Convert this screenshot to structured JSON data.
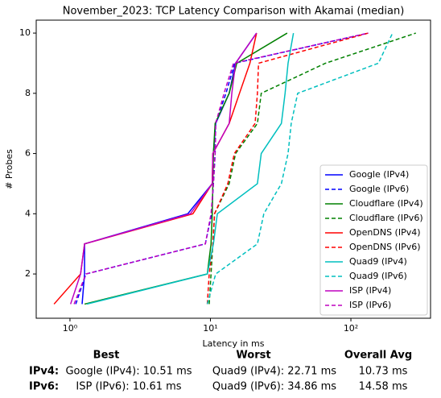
{
  "chart_data": {
    "type": "line",
    "title": "November_2023: TCP Latency Comparison with Akamai (median)",
    "xlabel": "Latency in ms",
    "ylabel": "# Probes",
    "xscale": "log",
    "xlim": [
      0.575,
      369
    ],
    "ylim": [
      0.53,
      10.43
    ],
    "xticks": [
      {
        "value": 1,
        "label": "10⁰"
      },
      {
        "value": 10,
        "label": "10¹"
      },
      {
        "value": 100,
        "label": "10²"
      }
    ],
    "yticks": [
      2,
      4,
      6,
      8,
      10
    ],
    "legend": "lower right",
    "series": [
      {
        "name": "Google (IPv4)",
        "color": "#0000ff",
        "dash": false,
        "x": [
          1.22,
          1.27,
          1.27,
          6.9,
          10.3,
          10.5,
          10.9,
          13.6,
          15.1,
          21.3
        ],
        "values": [
          1,
          2,
          3,
          4,
          5,
          6,
          7,
          8,
          9,
          10
        ]
      },
      {
        "name": "Google (IPv6)",
        "color": "#0000ff",
        "dash": true,
        "x": [
          1.1,
          1.3,
          9.2,
          10.2,
          10.5,
          10.8,
          10.9,
          12.9,
          14.9,
          133
        ],
        "values": [
          1,
          2,
          3,
          4,
          5,
          6,
          7,
          8,
          9,
          10
        ]
      },
      {
        "name": "Cloudflare (IPv4)",
        "color": "#008000",
        "dash": false,
        "x": [
          1.27,
          9.5,
          10.1,
          10.3,
          10.4,
          10.5,
          10.8,
          13.6,
          15.4,
          35.2
        ],
        "values": [
          1,
          2,
          3,
          4,
          5,
          6,
          7,
          8,
          9,
          10
        ]
      },
      {
        "name": "Cloudflare (IPv6)",
        "color": "#008000",
        "dash": true,
        "x": [
          9.8,
          10.1,
          10.4,
          10.7,
          13.6,
          15.1,
          21.6,
          23,
          66,
          290
        ],
        "values": [
          1,
          2,
          3,
          4,
          5,
          6,
          7,
          8,
          9,
          10
        ]
      },
      {
        "name": "OpenDNS (IPv4)",
        "color": "#ff0000",
        "dash": false,
        "x": [
          0.77,
          1.19,
          1.27,
          7.5,
          10.3,
          10.4,
          13.6,
          16.1,
          19.1,
          21.3
        ],
        "values": [
          1,
          2,
          3,
          4,
          5,
          6,
          7,
          8,
          9,
          10
        ]
      },
      {
        "name": "OpenDNS (IPv6)",
        "color": "#ff0000",
        "dash": true,
        "x": [
          9.5,
          9.8,
          10.4,
          10.7,
          13.3,
          14.8,
          20.8,
          21.6,
          22,
          133
        ],
        "values": [
          1,
          2,
          3,
          4,
          5,
          6,
          7,
          8,
          9,
          10
        ]
      },
      {
        "name": "Quad9 (IPv4)",
        "color": "#00bfbf",
        "dash": false,
        "x": [
          1.32,
          9.5,
          10.5,
          11.2,
          21.6,
          23,
          32,
          34,
          35.7,
          39
        ],
        "values": [
          1,
          2,
          3,
          4,
          5,
          6,
          7,
          8,
          9,
          10
        ]
      },
      {
        "name": "Quad9 (IPv6)",
        "color": "#00bfbf",
        "dash": true,
        "x": [
          9.5,
          10.9,
          21.6,
          24,
          32,
          35.7,
          37.6,
          41.8,
          157,
          198
        ],
        "values": [
          1,
          2,
          3,
          4,
          5,
          6,
          7,
          8,
          9,
          10
        ]
      },
      {
        "name": "ISP (IPv4)",
        "color": "#bf00bf",
        "dash": false,
        "x": [
          1.01,
          1.19,
          1.27,
          7.2,
          10.3,
          10.4,
          13.6,
          14.2,
          15.1,
          21.3
        ],
        "values": [
          1,
          2,
          3,
          4,
          5,
          6,
          7,
          8,
          9,
          10
        ]
      },
      {
        "name": "ISP (IPv6)",
        "color": "#bf00bf",
        "dash": true,
        "x": [
          1.07,
          1.3,
          9.2,
          10.1,
          10.5,
          10.8,
          10.9,
          12.5,
          14.6,
          133
        ],
        "values": [
          1,
          2,
          3,
          4,
          5,
          6,
          7,
          8,
          9,
          10
        ]
      }
    ]
  },
  "table": {
    "headers": [
      "Best",
      "Worst",
      "Overall Avg"
    ],
    "rows": [
      [
        "IPv4:",
        "Google (IPv4): 10.51 ms",
        "Quad9 (IPv4): 22.71 ms",
        "10.73 ms"
      ],
      [
        "IPv6:",
        "ISP (IPv6): 10.61 ms",
        "Quad9 (IPv6): 34.86 ms",
        "14.58 ms"
      ]
    ]
  }
}
